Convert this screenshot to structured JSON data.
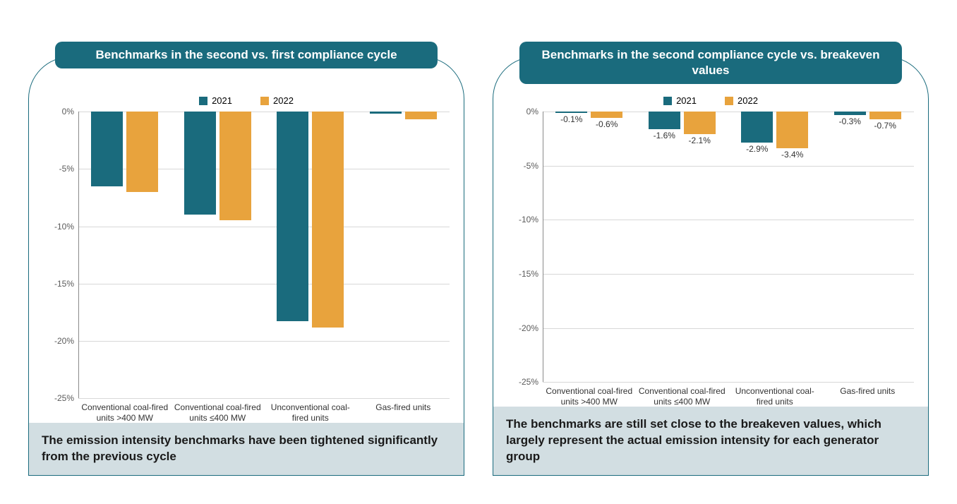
{
  "colors": {
    "teal": "#1a6b7d",
    "orange": "#e8a33d",
    "caption_bg": "#d2dee2",
    "grid": "#d8d8d8",
    "axis": "#8a8a8a",
    "text": "#333333",
    "title_text": "#ffffff"
  },
  "left": {
    "title": "Benchmarks in the second vs. first compliance cycle",
    "legend": [
      {
        "label": "2021",
        "color": "#1a6b7d"
      },
      {
        "label": "2022",
        "color": "#e8a33d"
      }
    ],
    "ylim": [
      -25,
      0
    ],
    "ytick_step": 5,
    "categories": [
      "Conventional coal-fired units >400 MW",
      "Conventional coal-fired units ≤400 MW",
      "Unconventional coal-fired units",
      "Gas-fired units"
    ],
    "series": [
      {
        "name": "2021",
        "values": [
          -6.5,
          -9.0,
          -18.3,
          -0.2
        ],
        "color": "#1a6b7d"
      },
      {
        "name": "2022",
        "values": [
          -7.0,
          -9.5,
          -18.8,
          -0.7
        ],
        "color": "#e8a33d"
      }
    ],
    "show_value_labels": false,
    "caption": "The emission intensity benchmarks have been tightened significantly from the previous cycle"
  },
  "right": {
    "title": "Benchmarks in the second compliance cycle vs. breakeven values",
    "legend": [
      {
        "label": "2021",
        "color": "#1a6b7d"
      },
      {
        "label": "2022",
        "color": "#e8a33d"
      }
    ],
    "ylim": [
      -25,
      0
    ],
    "ytick_step": 5,
    "categories": [
      "Conventional coal-fired units >400 MW",
      "Conventional coal-fired units ≤400 MW",
      "Unconventional coal-fired units",
      "Gas-fired units"
    ],
    "series": [
      {
        "name": "2021",
        "values": [
          -0.1,
          -1.6,
          -2.9,
          -0.3
        ],
        "color": "#1a6b7d"
      },
      {
        "name": "2022",
        "values": [
          -0.6,
          -2.1,
          -3.4,
          -0.7
        ],
        "color": "#e8a33d"
      }
    ],
    "show_value_labels": true,
    "caption": "The benchmarks are still set close to the breakeven values, which largely represent the actual emission intensity for each generator group"
  }
}
